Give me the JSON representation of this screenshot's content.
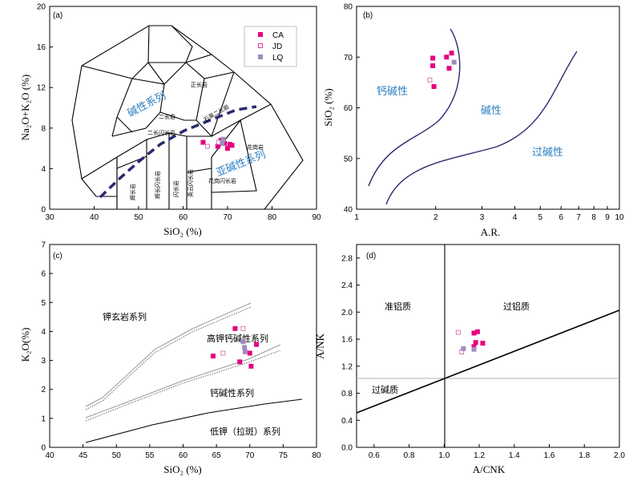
{
  "legend": {
    "entries": [
      {
        "code": "CA",
        "marker": "filled-square",
        "color": "#e6007e"
      },
      {
        "code": "JD",
        "marker": "open-square",
        "color": "#e6007e"
      },
      {
        "code": "LQ",
        "marker": "filled-square",
        "color": "#a08cc0"
      }
    ]
  },
  "colors": {
    "CA": "#e6007e",
    "JD": "#d070a8",
    "LQ": "#a08cc0",
    "blue_text": "#2d7fc1",
    "curve": "#2a2a70"
  },
  "chart_data": [
    {
      "id": "a",
      "type": "scatter",
      "panel_label": "(a)",
      "xlabel": "SiO₂ (%)",
      "ylabel": "Na₂O+K₂O (%)",
      "xlim": [
        30,
        90
      ],
      "ylim": [
        0,
        20
      ],
      "xticks": [
        30,
        40,
        50,
        60,
        70,
        80,
        90
      ],
      "yticks": [
        0,
        4,
        8,
        12,
        16,
        20
      ],
      "field_labels": [
        "正长岩",
        "石英二长岩",
        "二长岩",
        "二长闪长岩",
        "花岗岩",
        "花岗闪长岩",
        "英云闪长岩",
        "闪长岩",
        "辉长闪长岩",
        "辉长岩"
      ],
      "series_labels": [
        "碱性系列",
        "亚碱性系列"
      ],
      "series": [
        {
          "name": "CA",
          "points": [
            [
              64.5,
              6.6
            ],
            [
              67.8,
              6.2
            ],
            [
              69.3,
              6.5
            ],
            [
              70.0,
              6.0
            ],
            [
              70.5,
              6.4
            ],
            [
              71.0,
              6.3
            ],
            [
              68.5,
              6.8
            ]
          ]
        },
        {
          "name": "JD",
          "points": [
            [
              65.5,
              6.2
            ],
            [
              68.0,
              6.6
            ]
          ]
        },
        {
          "name": "LQ",
          "points": [
            [
              69.0,
              6.9
            ],
            [
              68.8,
              6.5
            ]
          ]
        }
      ]
    },
    {
      "id": "b",
      "type": "scatter",
      "panel_label": "(b)",
      "xlabel": "A.R.",
      "ylabel": "SiO₂ (%)",
      "xscale": "log",
      "xlim": [
        1,
        10
      ],
      "ylim": [
        40,
        80
      ],
      "xticks": [
        1,
        2,
        3,
        4,
        5,
        6,
        7,
        8,
        9,
        10
      ],
      "yticks": [
        40,
        50,
        60,
        70,
        80
      ],
      "region_labels": [
        "钙碱性",
        "碱性",
        "过碱性"
      ],
      "series": [
        {
          "name": "CA",
          "points": [
            [
              1.95,
              69.8
            ],
            [
              1.95,
              68.3
            ],
            [
              1.97,
              64.2
            ],
            [
              2.2,
              70.0
            ],
            [
              2.3,
              70.8
            ],
            [
              2.25,
              67.8
            ]
          ]
        },
        {
          "name": "JD",
          "points": [
            [
              1.9,
              65.5
            ]
          ]
        },
        {
          "name": "LQ",
          "points": [
            [
              2.35,
              69.0
            ]
          ]
        }
      ]
    },
    {
      "id": "c",
      "type": "scatter",
      "panel_label": "(c)",
      "xlabel": "SiO₂ (%)",
      "ylabel": "K₂O(%)",
      "xlim": [
        40,
        80
      ],
      "ylim": [
        0,
        7
      ],
      "xticks": [
        40,
        45,
        50,
        55,
        60,
        65,
        70,
        75,
        80
      ],
      "yticks": [
        0,
        1,
        2,
        3,
        4,
        5,
        6,
        7
      ],
      "region_labels": [
        "钾玄岩系列",
        "高钾钙碱性系列",
        "钙碱性系列",
        "低钾（拉斑）系列"
      ],
      "series": [
        {
          "name": "CA",
          "points": [
            [
              64.5,
              3.15
            ],
            [
              67.8,
              4.1
            ],
            [
              68.5,
              2.95
            ],
            [
              70.0,
              3.25
            ],
            [
              70.2,
              2.8
            ],
            [
              71.0,
              3.55
            ]
          ]
        },
        {
          "name": "JD",
          "points": [
            [
              66.0,
              3.25
            ],
            [
              69.0,
              4.1
            ]
          ]
        },
        {
          "name": "LQ",
          "points": [
            [
              69.0,
              3.65
            ],
            [
              69.2,
              3.45
            ],
            [
              69.3,
              3.3
            ]
          ]
        }
      ]
    },
    {
      "id": "d",
      "type": "scatter",
      "panel_label": "(d)",
      "xlabel": "A/CNK",
      "ylabel": "A/NK",
      "xlim": [
        0.5,
        2.0
      ],
      "ylim": [
        0,
        3.0
      ],
      "xticks": [
        "0.6",
        "0.8",
        "1.0",
        "1.2",
        "1.4",
        "1.6",
        "1.8",
        "2.0"
      ],
      "yticks": [
        "0.0",
        "0.4",
        "0.8",
        "1.2",
        "1.6",
        "2.0",
        "2.4",
        "2.8"
      ],
      "region_labels": [
        "准铝质",
        "过铝质",
        "过碱质"
      ],
      "series": [
        {
          "name": "CA",
          "points": [
            [
              1.17,
              1.69
            ],
            [
              1.19,
              1.71
            ],
            [
              1.22,
              1.54
            ],
            [
              1.18,
              1.55
            ],
            [
              1.17,
              1.49
            ]
          ]
        },
        {
          "name": "JD",
          "points": [
            [
              1.08,
              1.7
            ],
            [
              1.1,
              1.41
            ]
          ]
        },
        {
          "name": "LQ",
          "points": [
            [
              1.11,
              1.46
            ],
            [
              1.17,
              1.45
            ]
          ]
        }
      ]
    }
  ]
}
